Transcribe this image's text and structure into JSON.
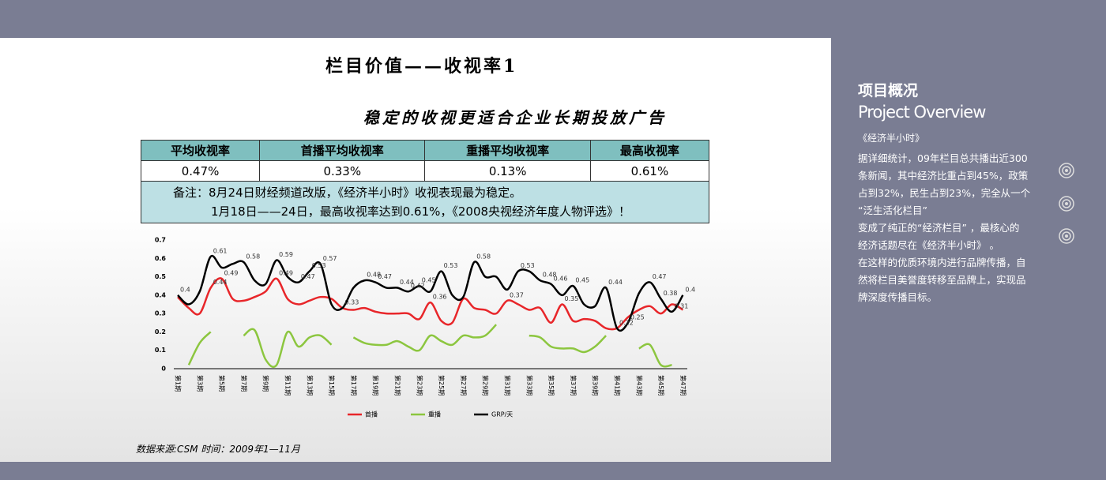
{
  "header": {
    "title": "栏目价值——收视率1",
    "subtitle": "稳定的收视更适合企业长期投放广告"
  },
  "table": {
    "headers": [
      "平均收视率",
      "首播平均收视率",
      "重播平均收视率",
      "最高收视率"
    ],
    "rows": [
      [
        "0.47%",
        "0.33%",
        "0.13%",
        "0.61%"
      ]
    ],
    "note": [
      "备注：8月24日财经频道改版，《经济半小时》收视表现最为稳定。",
      "1月18日——24日，最高收视率达到0.61%，《2008央视经济年度人物评选》！"
    ]
  },
  "source": "数据来源:CSM 时间：2009年1—11月",
  "sidebar": {
    "title": "项目概况",
    "subtitle": "Project Overview",
    "name": "《经济半小时》",
    "lines": [
      "据详细统计，09年栏目总共播出近300",
      "条新闻，其中经济比重占到45%，政策",
      "占到32%，民生占到23%，完全从一个",
      "“泛生活化栏目”",
      "变成了纯正的“经济栏目” ，最核心的",
      "经济话题尽在《经济半小时》 。",
      "在这样的优质环境内进行品牌传播，自",
      "然将栏目美誉度转移至品牌上，实现品",
      "牌深度传播目标。"
    ]
  },
  "chart_data": {
    "type": "line",
    "categories": [
      "第1期",
      null,
      "第3期",
      null,
      "第5期",
      null,
      "第7期",
      null,
      "第9期",
      null,
      "第11期",
      null,
      "第13期",
      null,
      "第15期",
      null,
      "第17期",
      null,
      "第19期",
      null,
      "第21期",
      null,
      "第23期",
      null,
      "第25期",
      null,
      "第27期",
      null,
      "第29期",
      null,
      "第31期",
      null,
      "第33期",
      null,
      "第35期",
      null,
      "第37期",
      null,
      "第39期",
      null,
      "第41期",
      null,
      "第43期",
      null,
      "第45期",
      null,
      "第47期"
    ],
    "ylim": [
      0,
      0.7
    ],
    "yticks": [
      0,
      0.1,
      0.2,
      0.3,
      0.4,
      0.5,
      0.6,
      0.7
    ],
    "legend": "bottom",
    "series": [
      {
        "name": "首播",
        "color": "#e8262a",
        "values": [
          0.39,
          0.33,
          0.3,
          0.44,
          0.49,
          0.38,
          0.37,
          0.39,
          0.42,
          0.49,
          0.38,
          0.35,
          0.37,
          0.39,
          0.38,
          0.33,
          0.32,
          0.33,
          0.31,
          0.3,
          0.3,
          0.3,
          0.27,
          0.36,
          0.26,
          0.25,
          0.38,
          0.33,
          0.32,
          0.3,
          0.37,
          0.35,
          0.32,
          0.33,
          0.25,
          0.35,
          0.26,
          0.27,
          0.26,
          0.22,
          0.22,
          0.28,
          0.32,
          0.34,
          0.3,
          0.35,
          0.32
        ],
        "value_labels": [
          null,
          null,
          null,
          "0.44",
          "0.49",
          null,
          null,
          null,
          null,
          "0.49",
          null,
          null,
          null,
          null,
          null,
          null,
          null,
          null,
          null,
          null,
          null,
          null,
          null,
          "0.36",
          null,
          null,
          null,
          null,
          null,
          null,
          "0.37",
          null,
          null,
          null,
          null,
          "0.35",
          null,
          null,
          null,
          null,
          null,
          null,
          null,
          null,
          null,
          null,
          null
        ]
      },
      {
        "name": "重播",
        "color": "#8cc63f",
        "values": [
          null,
          0.02,
          0.14,
          0.2,
          null,
          null,
          0.18,
          0.21,
          0.05,
          0.02,
          0.2,
          0.12,
          0.17,
          0.18,
          0.13,
          null,
          0.17,
          0.14,
          0.13,
          0.13,
          0.15,
          0.12,
          0.1,
          0.18,
          0.15,
          0.13,
          0.18,
          0.17,
          0.18,
          0.24,
          null,
          null,
          0.18,
          0.17,
          0.12,
          0.11,
          0.11,
          0.09,
          0.12,
          0.18,
          null,
          null,
          0.11,
          0.13,
          0.02,
          0.02,
          null
        ]
      },
      {
        "name": "GRP/天",
        "color": "#000000",
        "values": [
          0.4,
          0.35,
          0.42,
          0.61,
          0.55,
          0.57,
          0.58,
          0.48,
          0.46,
          0.59,
          0.5,
          0.47,
          0.53,
          0.57,
          0.35,
          0.33,
          0.44,
          0.48,
          0.47,
          0.44,
          0.44,
          0.42,
          0.45,
          0.42,
          0.53,
          0.4,
          0.39,
          0.58,
          0.5,
          0.5,
          0.43,
          0.53,
          0.53,
          0.48,
          0.46,
          0.4,
          0.45,
          0.35,
          0.34,
          0.44,
          0.22,
          0.25,
          0.41,
          0.47,
          0.38,
          0.31,
          0.4
        ],
        "value_labels": [
          "0.4",
          null,
          null,
          "0.61",
          null,
          null,
          "0.58",
          null,
          null,
          "0.59",
          null,
          "0.47",
          "0.53",
          "0.57",
          null,
          "0.33",
          null,
          "0.48",
          "0.47",
          null,
          "0.44",
          "0.42",
          "0.45",
          null,
          "0.53",
          null,
          null,
          "0.58",
          null,
          null,
          null,
          "0.53",
          null,
          "0.48",
          "0.46",
          null,
          "0.45",
          null,
          null,
          "0.44",
          "0.22",
          "0.25",
          null,
          "0.47",
          "0.38",
          "0.31",
          "0.4"
        ]
      }
    ]
  }
}
